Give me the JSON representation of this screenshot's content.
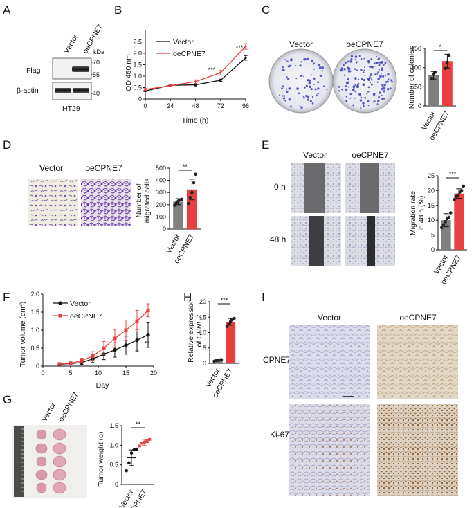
{
  "panels": {
    "A": "A",
    "B": "B",
    "C": "C",
    "D": "D",
    "E": "E",
    "F": "F",
    "G": "G",
    "H": "H",
    "I": "I"
  },
  "colors": {
    "vector": "#808080",
    "oe": "#e8403f",
    "vector_line": "#111111",
    "oe_line": "#e8403f"
  },
  "panelA": {
    "lanes": [
      "Vector",
      "oeCPNE7"
    ],
    "kda_label": "kDa",
    "rows": [
      {
        "name": "Flag",
        "markers": [
          "70",
          "55"
        ]
      },
      {
        "name": "β-actin",
        "markers": [
          "40"
        ]
      }
    ],
    "cell_line": "HT29"
  },
  "panelB": {
    "ylabel": "OD 450 nm",
    "xlabel": "Time (h)",
    "yticks": [
      "0",
      "0.5",
      "1.0",
      "1.5",
      "2.0",
      "2.5"
    ],
    "xticks": [
      "0",
      "24",
      "48",
      "72",
      "96"
    ],
    "legend": [
      "Vector",
      "oeCPNE7"
    ],
    "stars": [
      "***",
      "***"
    ]
  },
  "panelC": {
    "labels": [
      "Vector",
      "oeCPNE7"
    ],
    "ylabel": "Number of colonies",
    "yticks": [
      "0",
      "50",
      "100",
      "150"
    ],
    "sig": "*"
  },
  "panelD": {
    "labels": [
      "Vector",
      "oeCPNE7"
    ],
    "ylabel": "Number of migrated cells",
    "ylabel_lines": [
      "Number of",
      "migrated cells"
    ],
    "yticks": [
      "0",
      "100",
      "200",
      "300",
      "400",
      "500"
    ],
    "sig": "**"
  },
  "panelE": {
    "labels": [
      "Vector",
      "oeCPNE7"
    ],
    "rows": [
      "0 h",
      "48 h"
    ],
    "ylabel_lines": [
      "Migration rate",
      "in 48 h (%)"
    ],
    "yticks": [
      "0",
      "5",
      "10",
      "15",
      "20",
      "25"
    ],
    "sig": "***"
  },
  "panelF": {
    "ylabel": "Tumor volume (cm³)",
    "ylabel_base": "Tumor volume (cm",
    "ylabel_sup": "3",
    "ylabel_end": ")",
    "xlabel": "Day",
    "yticks": [
      "0",
      "0.5",
      "1.0",
      "1.5",
      "2.0"
    ],
    "xticks": [
      "0",
      "5",
      "10",
      "15",
      "20"
    ],
    "legend": [
      "Vector",
      "oeCPNE7"
    ],
    "sig": "**"
  },
  "panelG": {
    "labels": [
      "Vector",
      "oeCPNE7"
    ],
    "ylabel": "Tumor weight (g)",
    "yticks": [
      "0",
      "0.5",
      "1.0",
      "1.5"
    ],
    "sig": "**"
  },
  "panelH": {
    "ylabel_lines": [
      "Relative expression",
      "of CPNE7"
    ],
    "ylabel_prefix": "of ",
    "ylabel_ital": "CPNE7",
    "labels": [
      "Vector",
      "oeCPNE7"
    ],
    "yticks": [
      "0",
      "5",
      "10",
      "15",
      "20"
    ],
    "sig": "***"
  },
  "panelI": {
    "columns": [
      "Vector",
      "oeCPNE7"
    ],
    "rows": [
      "CPNE7",
      "Ki-67"
    ]
  },
  "chart_data": [
    {
      "type": "line",
      "id": "B",
      "x": [
        0,
        24,
        48,
        72,
        96
      ],
      "series": [
        {
          "name": "Vector",
          "values": [
            0.35,
            0.6,
            0.62,
            0.82,
            1.8
          ],
          "err": [
            0.03,
            0.03,
            0.05,
            0.05,
            0.1
          ]
        },
        {
          "name": "oeCPNE7",
          "values": [
            0.42,
            0.58,
            0.76,
            1.15,
            2.3
          ],
          "err": [
            0.04,
            0.04,
            0.08,
            0.1,
            0.12
          ]
        }
      ],
      "xlabel": "Time (h)",
      "ylabel": "OD 450 nm",
      "xlim": [
        0,
        96
      ],
      "ylim": [
        0,
        3.0
      ]
    },
    {
      "type": "bar",
      "id": "C",
      "categories": [
        "Vector",
        "oeCPNE7"
      ],
      "values": [
        80,
        117
      ],
      "err": [
        10,
        18
      ],
      "points": [
        [
          72,
          83,
          88
        ],
        [
          98,
          114,
          132
        ]
      ],
      "ylabel": "Number of colonies",
      "ylim": [
        0,
        150
      ]
    },
    {
      "type": "bar",
      "id": "D",
      "categories": [
        "Vector",
        "oeCPNE7"
      ],
      "values": [
        225,
        325
      ],
      "err": [
        25,
        85
      ],
      "points": [
        [
          195,
          215,
          230,
          240,
          245
        ],
        [
          210,
          260,
          300,
          380,
          450
        ]
      ],
      "ylabel": "Number of migrated cells",
      "ylim": [
        0,
        500
      ]
    },
    {
      "type": "bar",
      "id": "E",
      "categories": [
        "Vector",
        "oeCPNE7"
      ],
      "values": [
        10,
        19
      ],
      "err": [
        2.2,
        1.6
      ],
      "points": [
        [
          7.5,
          8.5,
          9.5,
          10.5,
          11,
          12.5
        ],
        [
          17,
          18,
          18.5,
          19.5,
          20,
          21.5
        ]
      ],
      "ylabel": "Migration rate in 48 h (%)",
      "ylim": [
        0,
        25
      ]
    },
    {
      "type": "line",
      "id": "F",
      "x": [
        3,
        5,
        7,
        9,
        11,
        13,
        15,
        17,
        19
      ],
      "series": [
        {
          "name": "Vector",
          "values": [
            0.05,
            0.07,
            0.1,
            0.2,
            0.33,
            0.45,
            0.58,
            0.72,
            0.87
          ],
          "err": [
            0.02,
            0.03,
            0.05,
            0.1,
            0.15,
            0.2,
            0.25,
            0.3,
            0.35
          ]
        },
        {
          "name": "oeCPNE7",
          "values": [
            0.06,
            0.08,
            0.15,
            0.28,
            0.5,
            0.77,
            1.0,
            1.25,
            1.55
          ],
          "err": [
            0.02,
            0.04,
            0.07,
            0.12,
            0.18,
            0.25,
            0.28,
            0.3,
            0.18
          ]
        }
      ],
      "xlabel": "Day",
      "ylabel": "Tumor volume (cm³)",
      "xlim": [
        0,
        20
      ],
      "ylim": [
        0,
        2.0
      ]
    },
    {
      "type": "scatter",
      "id": "G",
      "categories": [
        "Vector",
        "oeCPNE7"
      ],
      "means": [
        0.68,
        1.07
      ],
      "err": [
        0.2,
        0.08
      ],
      "points": [
        [
          0.35,
          0.55,
          0.8,
          0.88,
          0.9
        ],
        [
          0.98,
          1.05,
          1.08,
          1.12,
          1.15
        ]
      ],
      "ylabel": "Tumor weight (g)",
      "ylim": [
        0,
        1.5
      ]
    },
    {
      "type": "bar",
      "id": "H",
      "categories": [
        "Vector",
        "oeCPNE7"
      ],
      "values": [
        1.0,
        13.5
      ],
      "err": [
        0.2,
        1.1
      ],
      "points": [
        [
          0.7,
          0.9,
          1.0,
          1.1,
          1.2
        ],
        [
          12,
          12.8,
          13.6,
          14.2,
          14.6
        ]
      ],
      "ylabel": "Relative expression of CPNE7",
      "ylim": [
        0,
        20
      ]
    }
  ]
}
